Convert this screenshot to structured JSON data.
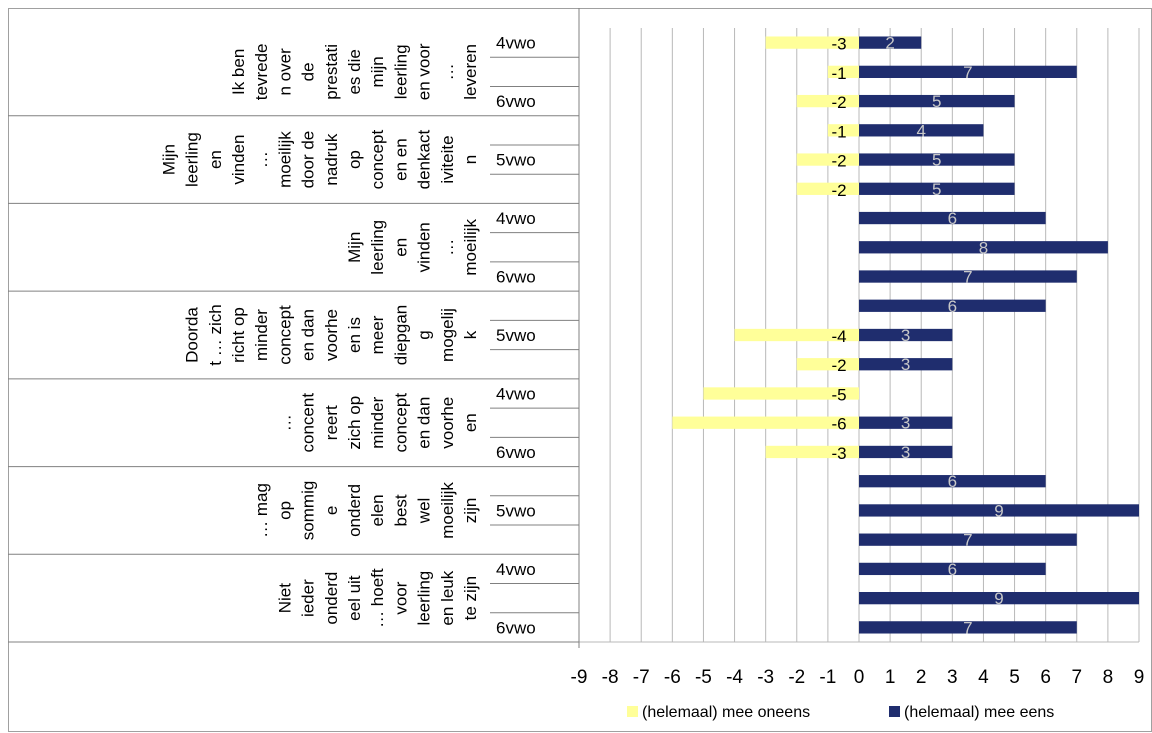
{
  "chart_data": {
    "type": "bar",
    "orientation": "horizontal",
    "stacked": "diverging",
    "xlim": [
      -9,
      9
    ],
    "x_ticks": [
      "-9",
      "-8",
      "-7",
      "-6",
      "-5",
      "-4",
      "-3",
      "-2",
      "-1",
      "0",
      "1",
      "2",
      "3",
      "4",
      "5",
      "6",
      "7",
      "8",
      "9"
    ],
    "grid": true,
    "legend_position": "bottom",
    "colors": {
      "disagree": "#FFFF99",
      "agree": "#1F2D6E",
      "agree_label": "#c8c8c8"
    },
    "series": [
      {
        "name": "(helemaal) mee oneens",
        "key": "disagree"
      },
      {
        "name": "(helemaal) mee eens",
        "key": "agree"
      }
    ],
    "groups": [
      {
        "label_lines": [
          "Ik ben",
          "tevrede",
          "n over",
          "de",
          "prestati",
          "es die",
          "mijn",
          "leerling",
          "en voor",
          "…",
          "leveren"
        ],
        "subgroups": [
          {
            "label": "4vwo",
            "disagree": -3,
            "agree": 2
          },
          {
            "label": "",
            "disagree": -1,
            "agree": 7
          },
          {
            "label": "6vwo",
            "disagree": -2,
            "agree": 5
          }
        ]
      },
      {
        "label_lines": [
          "Mijn",
          "leerling",
          "en",
          "vinden",
          "…",
          "moeilijk",
          "door de",
          "nadruk",
          "op",
          "concept",
          "en en",
          "denkact",
          "iviteite",
          "n"
        ],
        "subgroups": [
          {
            "label": "",
            "disagree": -1,
            "agree": 4
          },
          {
            "label": "5vwo",
            "disagree": -2,
            "agree": 5
          },
          {
            "label": "",
            "disagree": -2,
            "agree": 5
          }
        ]
      },
      {
        "label_lines": [
          "Mijn",
          "leerling",
          "en",
          "vinden",
          "…",
          "moeilijk"
        ],
        "subgroups": [
          {
            "label": "4vwo",
            "disagree": 0,
            "agree": 6
          },
          {
            "label": "",
            "disagree": 0,
            "agree": 8
          },
          {
            "label": "6vwo",
            "disagree": 0,
            "agree": 7
          }
        ]
      },
      {
        "label_lines": [
          "Doorda",
          "t … zich",
          "richt op",
          "minder",
          "concept",
          "en dan",
          "voorhe",
          "en is",
          "meer",
          "diepgan",
          "g",
          "mogelij",
          "k"
        ],
        "subgroups": [
          {
            "label": "",
            "disagree": 0,
            "agree": 6
          },
          {
            "label": "5vwo",
            "disagree": -4,
            "agree": 3
          },
          {
            "label": "",
            "disagree": -2,
            "agree": 3
          }
        ]
      },
      {
        "label_lines": [
          "…",
          "concent",
          "reert",
          "zich op",
          "minder",
          "concept",
          "en dan",
          "voorhe",
          "en"
        ],
        "subgroups": [
          {
            "label": "4vwo",
            "disagree": -5,
            "agree": 0
          },
          {
            "label": "",
            "disagree": -6,
            "agree": 3
          },
          {
            "label": "6vwo",
            "disagree": -3,
            "agree": 3
          }
        ]
      },
      {
        "label_lines": [
          "… mag",
          "op",
          "sommig",
          "e",
          "onderd",
          "elen",
          "best",
          "wel",
          "moeilijk",
          "zijn"
        ],
        "subgroups": [
          {
            "label": "",
            "disagree": 0,
            "agree": 6
          },
          {
            "label": "5vwo",
            "disagree": 0,
            "agree": 9
          },
          {
            "label": "",
            "disagree": 0,
            "agree": 7
          }
        ]
      },
      {
        "label_lines": [
          "Niet",
          "ieder",
          "onderd",
          "eel uit",
          "… hoeft",
          "voor",
          "leerling",
          "en leuk",
          "te zijn"
        ],
        "subgroups": [
          {
            "label": "4vwo",
            "disagree": 0,
            "agree": 6
          },
          {
            "label": "",
            "disagree": 0,
            "agree": 9
          },
          {
            "label": "6vwo",
            "disagree": 0,
            "agree": 7
          }
        ]
      }
    ]
  }
}
